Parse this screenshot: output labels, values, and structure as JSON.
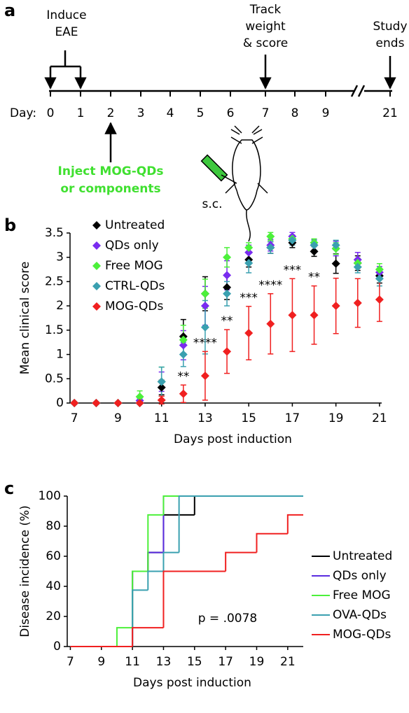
{
  "timeline": {
    "panel_label": "a",
    "day_prefix": "Day:",
    "days": [
      "0",
      "1",
      "2",
      "3",
      "4",
      "5",
      "6",
      "7",
      "8",
      "9",
      "21"
    ],
    "induce": [
      "Induce",
      "EAE"
    ],
    "track": [
      "Track",
      "weight",
      "& score"
    ],
    "study": [
      "Study",
      "ends"
    ],
    "inject": [
      "Inject MOG-QDs",
      "or components"
    ],
    "route": "s.c."
  },
  "chart_data": [
    {
      "type": "scatter",
      "panel_label": "b",
      "xlabel": "Days post induction",
      "ylabel": "Mean clinical score",
      "x": [
        7,
        8,
        9,
        10,
        11,
        12,
        13,
        14,
        15,
        16,
        17,
        18,
        19,
        20,
        21
      ],
      "xlim": [
        6.8,
        21.1
      ],
      "xticks": [
        7,
        9,
        11,
        13,
        15,
        17,
        19,
        21
      ],
      "ylim": [
        0,
        3.5
      ],
      "yticks": [
        0,
        0.5,
        1,
        1.5,
        2,
        2.5,
        3,
        3.5
      ],
      "legend": "upper left",
      "series": [
        {
          "name": "Untreated",
          "color": "#000000",
          "values": [
            0,
            0,
            0,
            0,
            0.32,
            1.37,
            2.25,
            2.38,
            2.95,
            3.2,
            3.3,
            3.12,
            2.87,
            2.88,
            2.62
          ],
          "errors": [
            0,
            0,
            0,
            0,
            0.15,
            0.35,
            0.35,
            0.25,
            0.15,
            0.12,
            0.1,
            0.1,
            0.2,
            0.15,
            0.15
          ]
        },
        {
          "name": "QDs only",
          "color": "#7a2cf0",
          "values": [
            0,
            0,
            0,
            0.05,
            0.44,
            1.19,
            2.0,
            2.63,
            3.1,
            3.25,
            3.43,
            3.25,
            3.18,
            2.95,
            2.69
          ],
          "errors": [
            0,
            0,
            0,
            0.05,
            0.2,
            0.3,
            0.4,
            0.3,
            0.15,
            0.12,
            0.08,
            0.12,
            0.15,
            0.15,
            0.12
          ]
        },
        {
          "name": "Free MOG",
          "color": "#4cf03a",
          "values": [
            0,
            0,
            0,
            0.13,
            0.44,
            1.3,
            2.25,
            3.0,
            3.2,
            3.43,
            3.38,
            3.3,
            3.18,
            2.88,
            2.75
          ],
          "errors": [
            0,
            0,
            0,
            0.12,
            0.3,
            0.3,
            0.3,
            0.2,
            0.1,
            0.08,
            0.08,
            0.08,
            0.12,
            0.1,
            0.12
          ]
        },
        {
          "name": "CTRL-QDs",
          "color": "#3aa0b0",
          "values": [
            0,
            0,
            0,
            0,
            0.44,
            1.0,
            1.56,
            2.25,
            2.88,
            3.2,
            3.35,
            3.25,
            3.25,
            2.8,
            2.56
          ],
          "errors": [
            0,
            0,
            0,
            0,
            0.3,
            0.25,
            0.55,
            0.25,
            0.2,
            0.12,
            0.1,
            0.1,
            0.1,
            0.12,
            0.15
          ]
        },
        {
          "name": "MOG-QDs",
          "color": "#f02020",
          "values": [
            0,
            0,
            0,
            0,
            0.06,
            0.19,
            0.56,
            1.06,
            1.44,
            1.63,
            1.81,
            1.81,
            2.0,
            2.06,
            2.13
          ],
          "errors": [
            0,
            0,
            0,
            0,
            0.08,
            0.18,
            0.5,
            0.45,
            0.55,
            0.62,
            0.75,
            0.6,
            0.57,
            0.5,
            0.45
          ]
        }
      ],
      "annotations": [
        {
          "text": "**",
          "x": 12
        },
        {
          "text": "****",
          "x": 13
        },
        {
          "text": "**",
          "x": 14
        },
        {
          "text": "***",
          "x": 15
        },
        {
          "text": "****",
          "x": 16
        },
        {
          "text": "***",
          "x": 17
        },
        {
          "text": "**",
          "x": 18
        }
      ]
    },
    {
      "type": "step",
      "panel_label": "c",
      "xlabel": "Days post induction",
      "ylabel": "Disease incidence (%)",
      "xlim": [
        6.8,
        22
      ],
      "xticks": [
        7,
        9,
        11,
        13,
        15,
        17,
        19,
        21
      ],
      "ylim": [
        0,
        100
      ],
      "yticks": [
        0,
        20,
        40,
        60,
        80,
        100
      ],
      "legend": "right",
      "series": [
        {
          "name": "Untreated",
          "color": "#000000",
          "x": [
            7,
            11,
            12,
            13,
            15,
            22
          ],
          "values": [
            0,
            50,
            62.5,
            87.5,
            100,
            100
          ]
        },
        {
          "name": "QDs only",
          "color": "#5a2ce0",
          "x": [
            7,
            11,
            12,
            13,
            22
          ],
          "values": [
            0,
            50,
            62.5,
            100,
            100
          ]
        },
        {
          "name": "Free MOG",
          "color": "#4cf03a",
          "x": [
            7,
            10,
            11,
            12,
            13,
            22
          ],
          "values": [
            0,
            12.5,
            50,
            87.5,
            100,
            100
          ]
        },
        {
          "name": "OVA-QDs",
          "color": "#3aa0b0",
          "x": [
            7,
            11,
            12,
            13,
            14,
            22
          ],
          "values": [
            0,
            37.5,
            50,
            62.5,
            100,
            100
          ]
        },
        {
          "name": "MOG-QDs",
          "color": "#f02020",
          "x": [
            7,
            11,
            13,
            17,
            19,
            21,
            22
          ],
          "values": [
            0,
            12.5,
            50,
            62.5,
            75,
            87.5,
            87.5
          ]
        }
      ],
      "annotation": "p = .0078"
    }
  ]
}
